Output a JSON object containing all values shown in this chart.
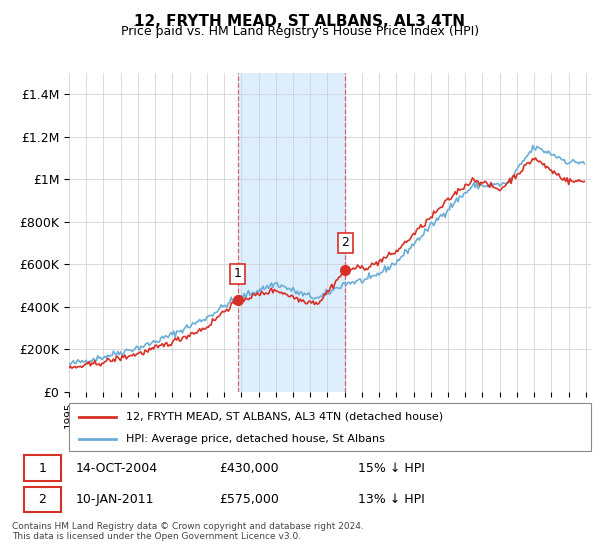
{
  "title": "12, FRYTH MEAD, ST ALBANS, AL3 4TN",
  "subtitle": "Price paid vs. HM Land Registry's House Price Index (HPI)",
  "ylabel_ticks": [
    "£0",
    "£200K",
    "£400K",
    "£600K",
    "£800K",
    "£1M",
    "£1.2M",
    "£1.4M"
  ],
  "ylim": [
    0,
    1500000
  ],
  "yticks": [
    0,
    200000,
    400000,
    600000,
    800000,
    1000000,
    1200000,
    1400000
  ],
  "sale1_date_idx": 9.79,
  "sale1_price": 430000,
  "sale1_label": "1",
  "sale2_date_idx": 16.04,
  "sale2_price": 575000,
  "sale2_label": "2",
  "legend_line1": "12, FRYTH MEAD, ST ALBANS, AL3 4TN (detached house)",
  "legend_line2": "HPI: Average price, detached house, St Albans",
  "table_row1": [
    "1",
    "14-OCT-2004",
    "£430,000",
    "15% ↓ HPI"
  ],
  "table_row2": [
    "2",
    "10-JAN-2011",
    "£575,000",
    "13% ↓ HPI"
  ],
  "footnote": "Contains HM Land Registry data © Crown copyright and database right 2024.\nThis data is licensed under the Open Government Licence v3.0.",
  "hpi_color": "#6baed6",
  "price_color": "#d73027",
  "shade_color": "#ddeeff",
  "grid_color": "#cccccc",
  "background_color": "#ffffff"
}
